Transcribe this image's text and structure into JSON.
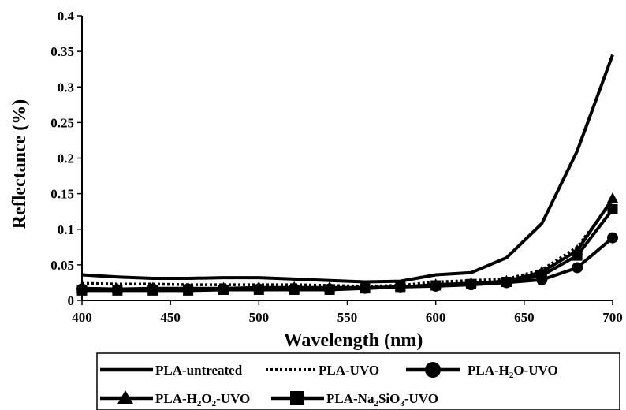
{
  "chart_data": {
    "type": "line",
    "xlabel": "Wavelength (nm)",
    "ylabel": "Reflectance (%)",
    "xlim": [
      400,
      700
    ],
    "ylim": [
      0,
      0.4
    ],
    "x_ticks": [
      "400",
      "450",
      "500",
      "550",
      "600",
      "650",
      "700"
    ],
    "y_ticks": [
      "0",
      "0.05",
      "0.1",
      "0.15",
      "0.2",
      "0.25",
      "0.3",
      "0.35",
      "0.4"
    ],
    "x": [
      400,
      420,
      440,
      460,
      480,
      500,
      520,
      540,
      560,
      580,
      600,
      620,
      640,
      660,
      680,
      700
    ],
    "series": [
      {
        "name": "PLA-untreated",
        "marker": "none",
        "line": "solid",
        "values": [
          0.036,
          0.033,
          0.031,
          0.031,
          0.032,
          0.032,
          0.03,
          0.028,
          0.026,
          0.027,
          0.036,
          0.039,
          0.06,
          0.108,
          0.21,
          0.345
        ]
      },
      {
        "name": "PLA-UVO",
        "marker": "none",
        "line": "dotted",
        "values": [
          0.024,
          0.023,
          0.023,
          0.022,
          0.022,
          0.022,
          0.022,
          0.021,
          0.02,
          0.021,
          0.026,
          0.028,
          0.03,
          0.043,
          0.075,
          0.14
        ]
      },
      {
        "name": "PLA-H2O-UVO",
        "marker": "circle",
        "line": "solid",
        "values": [
          0.016,
          0.015,
          0.016,
          0.016,
          0.016,
          0.016,
          0.016,
          0.016,
          0.017,
          0.019,
          0.02,
          0.022,
          0.025,
          0.029,
          0.046,
          0.088
        ]
      },
      {
        "name": "PLA-H2O2-UVO",
        "marker": "triangle",
        "line": "solid",
        "values": [
          0.017,
          0.016,
          0.017,
          0.017,
          0.017,
          0.018,
          0.018,
          0.018,
          0.018,
          0.019,
          0.022,
          0.024,
          0.027,
          0.04,
          0.07,
          0.143
        ]
      },
      {
        "name": "PLA-Na2SiO3-UVO",
        "marker": "square",
        "line": "solid",
        "values": [
          0.014,
          0.014,
          0.014,
          0.014,
          0.015,
          0.015,
          0.015,
          0.015,
          0.017,
          0.019,
          0.021,
          0.023,
          0.026,
          0.035,
          0.063,
          0.128
        ]
      }
    ],
    "legend": {
      "placement": "bottom",
      "row1": [
        {
          "main": "PLA-untreated",
          "sub": "",
          "tail": "",
          "sub2": "",
          "tail2": ""
        },
        {
          "main": "PLA-UVO",
          "sub": "",
          "tail": "",
          "sub2": "",
          "tail2": ""
        },
        {
          "main": "PLA-H",
          "sub": "2",
          "tail": "O-UVO",
          "sub2": "",
          "tail2": ""
        }
      ],
      "row2": [
        {
          "main": "PLA-H",
          "sub": "2",
          "tail": "O",
          "sub2": "2",
          "tail2": "-UVO"
        },
        {
          "main": "PLA-Na",
          "sub": "2",
          "tail": "SiO",
          "sub2": "3",
          "tail2": "-UVO"
        }
      ]
    },
    "grid": false
  }
}
